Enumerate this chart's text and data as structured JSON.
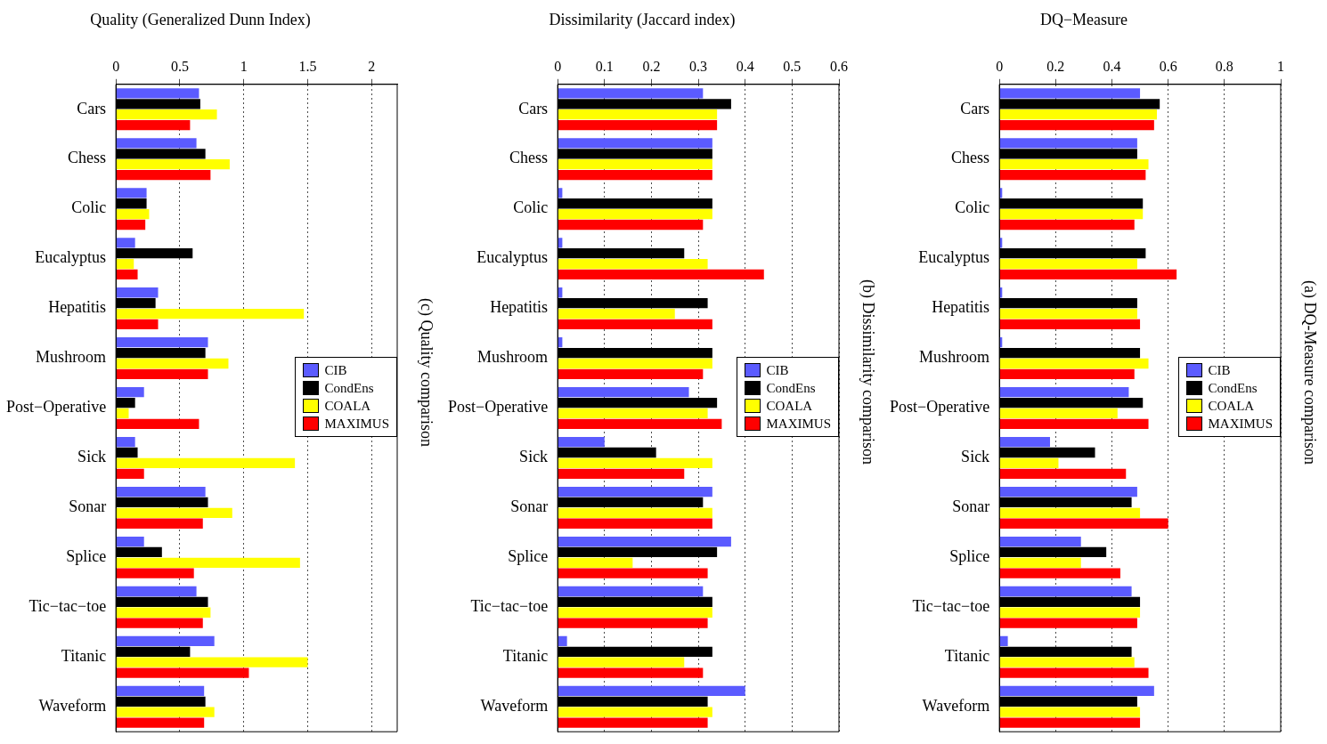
{
  "chart_data": [
    {
      "type": "bar",
      "orientation": "horizontal",
      "title": "Quality (Generalized Dunn Index)",
      "annotations": [
        "(c) Quality comparison"
      ],
      "categories": [
        "Cars",
        "Chess",
        "Colic",
        "Eucalyptus",
        "Hepatitis",
        "Mushroom",
        "Post−Operative",
        "Sick",
        "Sonar",
        "Splice",
        "Tic−tac−toe",
        "Titanic",
        "Waveform"
      ],
      "series": [
        {
          "name": "CIB",
          "color": "#5b5bff",
          "values": [
            0.65,
            0.63,
            0.24,
            0.15,
            0.33,
            0.72,
            0.22,
            0.15,
            0.7,
            0.22,
            0.63,
            0.77,
            0.69
          ]
        },
        {
          "name": "CondEns",
          "color": "#000000",
          "values": [
            0.66,
            0.7,
            0.24,
            0.6,
            0.31,
            0.7,
            0.15,
            0.17,
            0.72,
            0.36,
            0.72,
            0.58,
            0.7
          ]
        },
        {
          "name": "COALA",
          "color": "#ffff00",
          "values": [
            0.79,
            0.89,
            0.26,
            0.14,
            1.47,
            0.88,
            0.1,
            1.4,
            0.91,
            1.44,
            0.74,
            1.5,
            0.77
          ]
        },
        {
          "name": "MAXIMUS",
          "color": "#ff0000",
          "values": [
            0.58,
            0.74,
            0.23,
            0.17,
            0.33,
            0.72,
            0.65,
            0.22,
            0.68,
            0.61,
            0.68,
            1.04,
            0.69
          ]
        }
      ],
      "xlim": [
        0,
        2.2
      ],
      "xticks": [
        0,
        0.5,
        1,
        1.5,
        2
      ],
      "grid": "x",
      "legend": "right"
    },
    {
      "type": "bar",
      "orientation": "horizontal",
      "title": "Dissimilarity (Jaccard index)",
      "annotations": [
        "(b) Dissimilarity comparison"
      ],
      "categories": [
        "Cars",
        "Chess",
        "Colic",
        "Eucalyptus",
        "Hepatitis",
        "Mushroom",
        "Post−Operative",
        "Sick",
        "Sonar",
        "Splice",
        "Tic−tac−toe",
        "Titanic",
        "Waveform"
      ],
      "series": [
        {
          "name": "CIB",
          "color": "#5b5bff",
          "values": [
            0.31,
            0.33,
            0.01,
            0.01,
            0.01,
            0.01,
            0.28,
            0.1,
            0.33,
            0.37,
            0.31,
            0.02,
            0.4
          ]
        },
        {
          "name": "CondEns",
          "color": "#000000",
          "values": [
            0.37,
            0.33,
            0.33,
            0.27,
            0.32,
            0.33,
            0.34,
            0.21,
            0.31,
            0.34,
            0.33,
            0.33,
            0.32
          ]
        },
        {
          "name": "COALA",
          "color": "#ffff00",
          "values": [
            0.34,
            0.33,
            0.33,
            0.32,
            0.25,
            0.33,
            0.32,
            0.33,
            0.33,
            0.16,
            0.33,
            0.27,
            0.33
          ]
        },
        {
          "name": "MAXIMUS",
          "color": "#ff0000",
          "values": [
            0.34,
            0.33,
            0.31,
            0.44,
            0.33,
            0.31,
            0.35,
            0.27,
            0.33,
            0.32,
            0.32,
            0.31,
            0.32
          ]
        }
      ],
      "xlim": [
        0,
        0.6
      ],
      "xticks": [
        0,
        0.1,
        0.2,
        0.3,
        0.4,
        0.5,
        0.6
      ],
      "grid": "x",
      "legend": "right"
    },
    {
      "type": "bar",
      "orientation": "horizontal",
      "title": "DQ−Measure",
      "annotations": [
        "(a) DQ-Measure comparison"
      ],
      "categories": [
        "Cars",
        "Chess",
        "Colic",
        "Eucalyptus",
        "Hepatitis",
        "Mushroom",
        "Post−Operative",
        "Sick",
        "Sonar",
        "Splice",
        "Tic−tac−toe",
        "Titanic",
        "Waveform"
      ],
      "series": [
        {
          "name": "CIB",
          "color": "#5b5bff",
          "values": [
            0.5,
            0.49,
            0.01,
            0.01,
            0.01,
            0.01,
            0.46,
            0.18,
            0.49,
            0.29,
            0.47,
            0.03,
            0.55
          ]
        },
        {
          "name": "CondEns",
          "color": "#000000",
          "values": [
            0.57,
            0.49,
            0.51,
            0.52,
            0.49,
            0.5,
            0.51,
            0.34,
            0.47,
            0.38,
            0.5,
            0.47,
            0.49
          ]
        },
        {
          "name": "COALA",
          "color": "#ffff00",
          "values": [
            0.56,
            0.53,
            0.51,
            0.49,
            0.49,
            0.53,
            0.42,
            0.21,
            0.5,
            0.29,
            0.5,
            0.48,
            0.5
          ]
        },
        {
          "name": "MAXIMUS",
          "color": "#ff0000",
          "values": [
            0.55,
            0.52,
            0.48,
            0.63,
            0.5,
            0.48,
            0.53,
            0.45,
            0.6,
            0.43,
            0.49,
            0.53,
            0.5
          ]
        }
      ],
      "xlim": [
        0,
        1
      ],
      "xticks": [
        0,
        0.2,
        0.4,
        0.6,
        0.8,
        1
      ],
      "grid": "x",
      "legend": "right"
    }
  ]
}
